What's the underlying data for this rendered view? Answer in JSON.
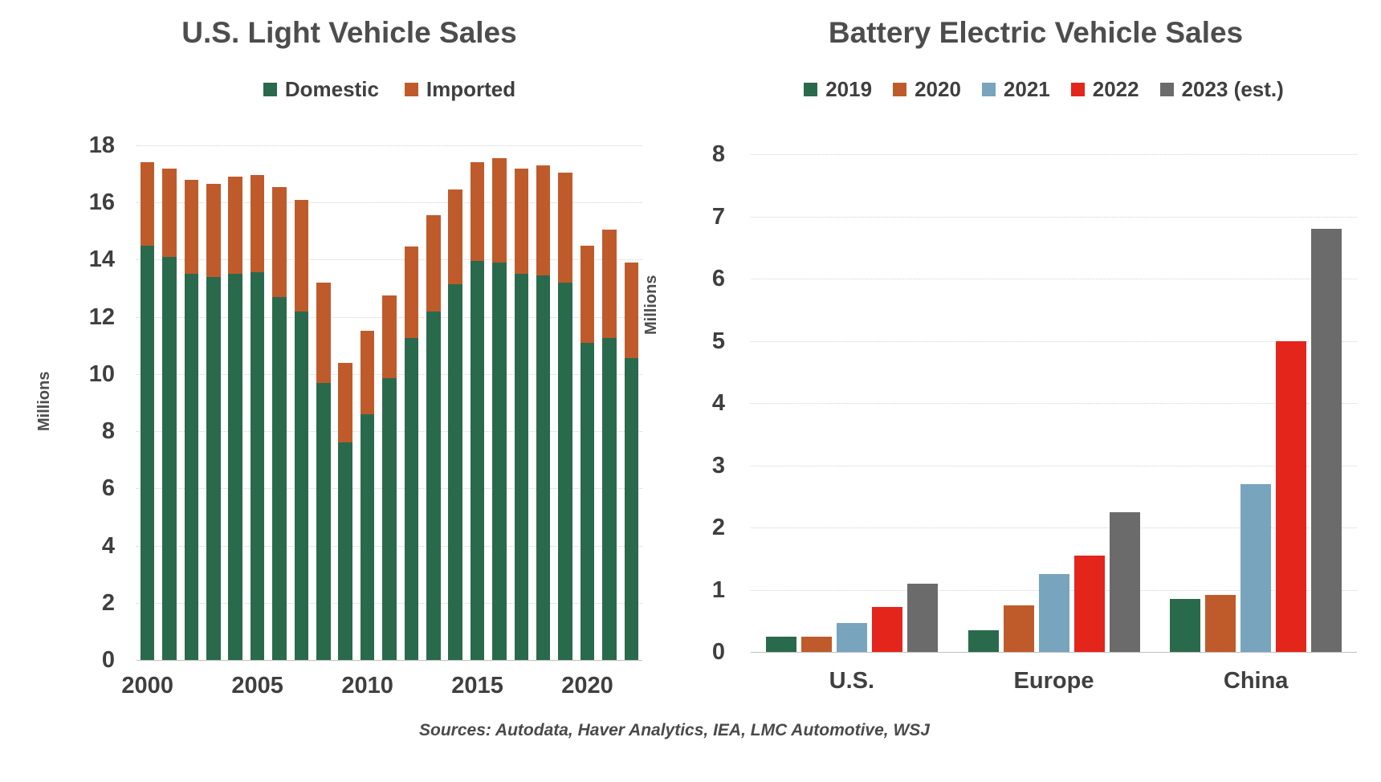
{
  "canvas": {
    "background": "#ffffff",
    "text_color": "#4d4d4d"
  },
  "source_note": "Sources: Autodata, Haver Analytics, IEA, LMC Automotive, WSJ",
  "colors": {
    "domestic_green": "#2A6A4C",
    "imported_rust": "#BF5B2B",
    "blue_2021": "#78A4BE",
    "red_2022": "#E3251C",
    "gray_2023": "#6B6B6B",
    "gridline": "#D2D2D2",
    "tick_text": "#3F3F3F"
  },
  "chart_data": [
    {
      "type": "bar",
      "variant": "stacked",
      "title": "U.S. Light Vehicle Sales",
      "xlabel": "",
      "ylabel": "Millions",
      "ylim": [
        0,
        18
      ],
      "ytick_step": 2,
      "grid": true,
      "legend_position": "top",
      "categories": [
        2000,
        2001,
        2002,
        2003,
        2004,
        2005,
        2006,
        2007,
        2008,
        2009,
        2010,
        2011,
        2012,
        2013,
        2014,
        2015,
        2016,
        2017,
        2018,
        2019,
        2020,
        2021,
        2022
      ],
      "xticks": [
        {
          "index": 0,
          "label": "2000"
        },
        {
          "index": 5,
          "label": "2005"
        },
        {
          "index": 10,
          "label": "2010"
        },
        {
          "index": 15,
          "label": "2015"
        },
        {
          "index": 20,
          "label": "2020"
        }
      ],
      "series": [
        {
          "name": "Domestic",
          "color": "#2A6A4C",
          "values": [
            14.5,
            14.1,
            13.5,
            13.4,
            13.5,
            13.55,
            12.7,
            12.2,
            9.7,
            7.6,
            8.6,
            9.85,
            11.25,
            12.2,
            13.15,
            13.95,
            13.9,
            13.5,
            13.45,
            13.2,
            11.1,
            11.25,
            10.55
          ]
        },
        {
          "name": "Imported",
          "color": "#BF5B2B",
          "values": [
            2.9,
            3.1,
            3.3,
            3.25,
            3.4,
            3.4,
            3.85,
            3.9,
            3.5,
            2.8,
            2.9,
            2.9,
            3.2,
            3.35,
            3.3,
            3.45,
            3.65,
            3.7,
            3.85,
            3.85,
            3.4,
            3.8,
            3.35
          ]
        }
      ]
    },
    {
      "type": "bar",
      "variant": "grouped",
      "title": "Battery Electric Vehicle Sales",
      "xlabel": "",
      "ylabel": "Millions",
      "ylim": [
        0,
        8
      ],
      "ytick_step": 1,
      "grid": true,
      "legend_position": "top",
      "categories": [
        "U.S.",
        "Europe",
        "China"
      ],
      "series": [
        {
          "name": "2019",
          "color": "#2A6A4C",
          "values": [
            0.24,
            0.35,
            0.85
          ]
        },
        {
          "name": "2020",
          "color": "#BF5B2B",
          "values": [
            0.25,
            0.75,
            0.92
          ]
        },
        {
          "name": "2021",
          "color": "#78A4BE",
          "values": [
            0.47,
            1.25,
            2.7
          ]
        },
        {
          "name": "2022",
          "color": "#E3251C",
          "values": [
            0.72,
            1.55,
            5.0
          ]
        },
        {
          "name": "2023 (est.)",
          "color": "#6B6B6B",
          "values": [
            1.1,
            2.25,
            6.8
          ]
        }
      ]
    }
  ]
}
